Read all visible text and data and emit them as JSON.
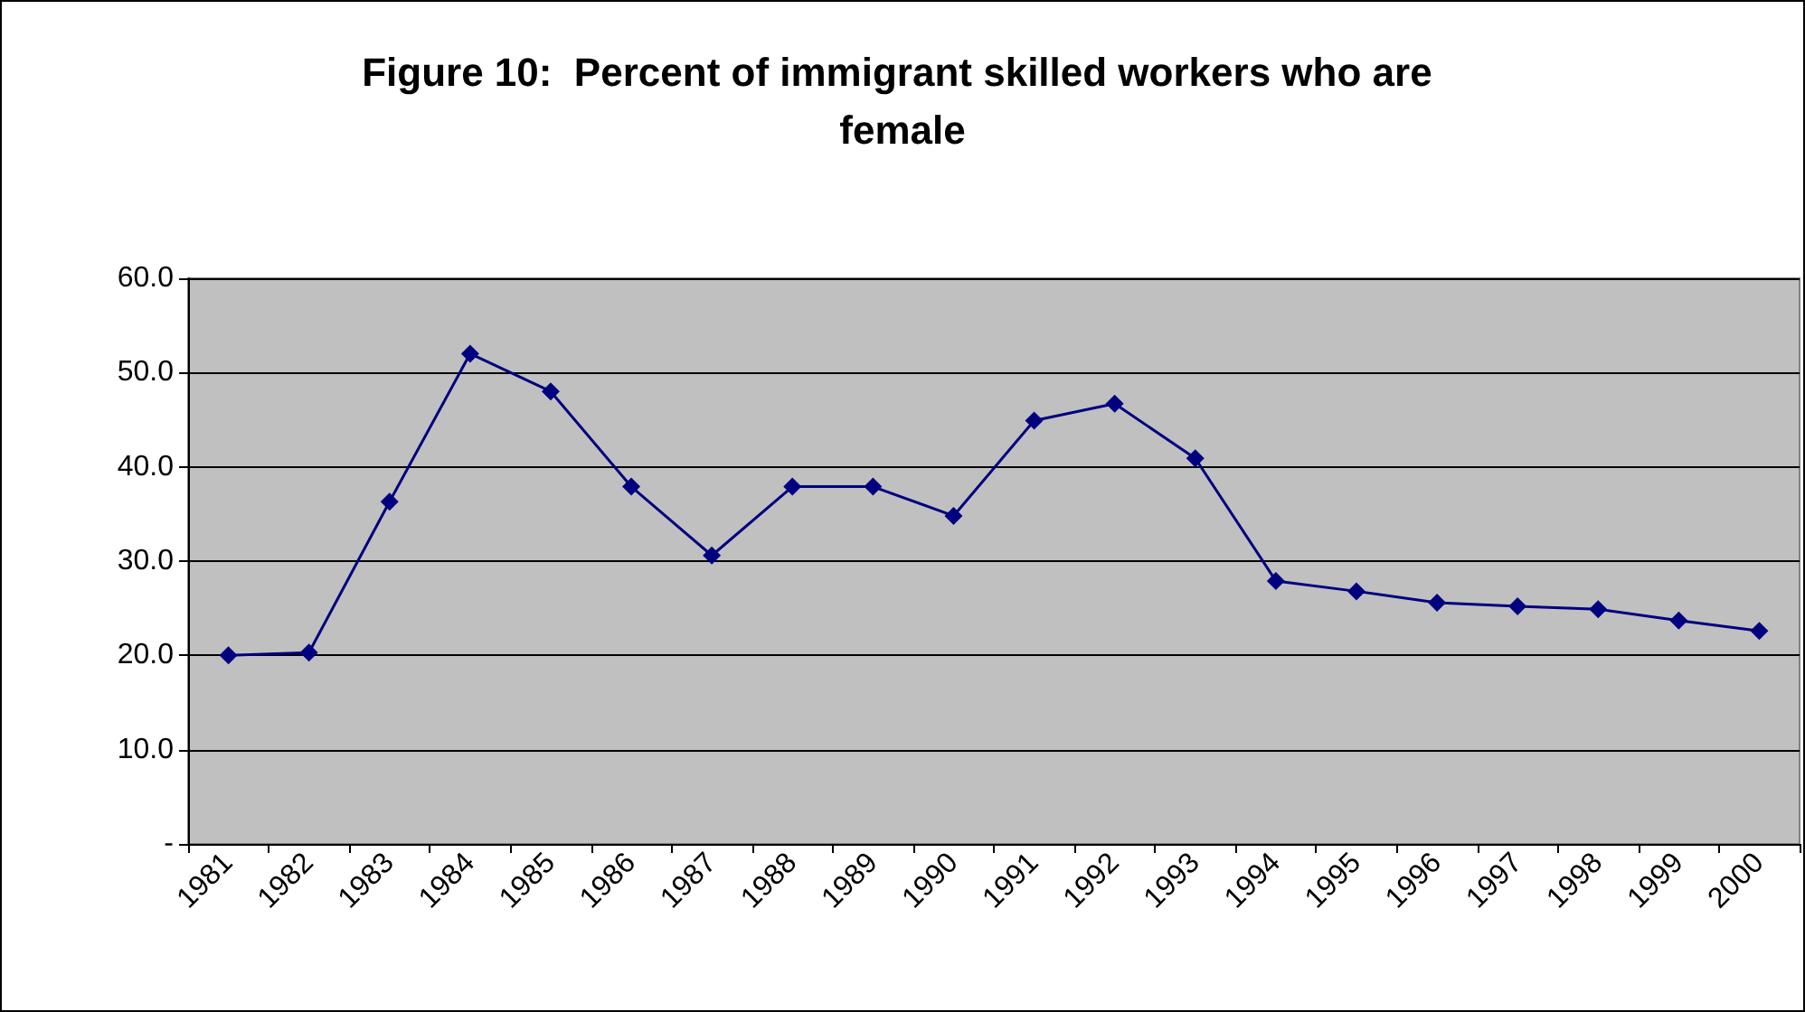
{
  "chart_data": {
    "type": "line",
    "title": "Figure 10:  Percent of immigrant skilled workers who are female",
    "categories": [
      "1981",
      "1982",
      "1983",
      "1984",
      "1985",
      "1986",
      "1987",
      "1988",
      "1989",
      "1990",
      "1991",
      "1992",
      "1993",
      "1994",
      "1995",
      "1996",
      "1997",
      "1998",
      "1999",
      "2000"
    ],
    "series": [
      {
        "color": "#000080",
        "values": [
          20.0,
          20.3,
          36.3,
          52.0,
          48.0,
          37.9,
          30.6,
          37.9,
          37.9,
          34.8,
          44.9,
          46.7,
          40.9,
          27.9,
          26.8,
          25.6,
          25.2,
          24.9,
          23.7,
          22.6
        ]
      }
    ],
    "ylim": [
      0,
      60
    ],
    "yticks": [
      {
        "value": 0,
        "label": "-"
      },
      {
        "value": 10,
        "label": "10.0"
      },
      {
        "value": 20,
        "label": "20.0"
      },
      {
        "value": 30,
        "label": "30.0"
      },
      {
        "value": 40,
        "label": "40.0"
      },
      {
        "value": 50,
        "label": "50.0"
      },
      {
        "value": 60,
        "label": "60.0"
      }
    ],
    "grid": "y",
    "marker": "diamond",
    "line_style": "solid"
  }
}
